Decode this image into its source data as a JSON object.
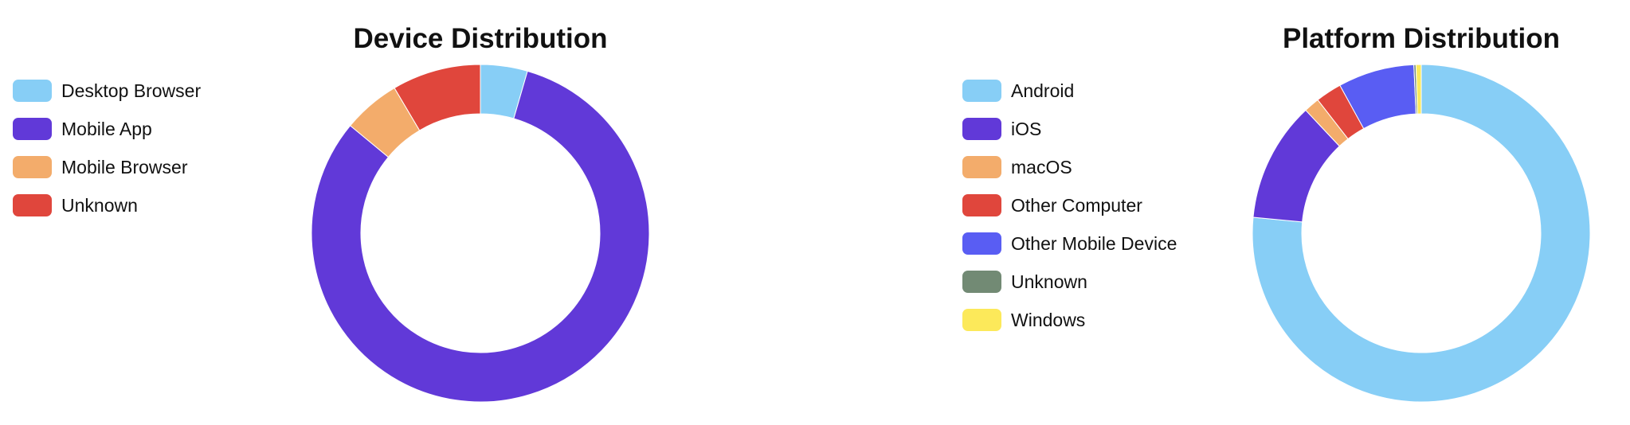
{
  "chart_data": [
    {
      "type": "pie",
      "title": "Device Distribution",
      "legend_position": "left",
      "series": [
        {
          "name": "Desktop Browser",
          "value": 4.5,
          "color": "#87CEF6"
        },
        {
          "name": "Mobile App",
          "value": 81.5,
          "color": "#6139D8"
        },
        {
          "name": "Mobile Browser",
          "value": 5.5,
          "color": "#F3AC6B"
        },
        {
          "name": "Unknown",
          "value": 8.5,
          "color": "#E0463C"
        }
      ]
    },
    {
      "type": "pie",
      "title": "Platform Distribution",
      "legend_position": "left",
      "series": [
        {
          "name": "Android",
          "value": 76.5,
          "color": "#87CEF6"
        },
        {
          "name": "iOS",
          "value": 11.5,
          "color": "#6139D8"
        },
        {
          "name": "macOS",
          "value": 1.5,
          "color": "#F3AC6B"
        },
        {
          "name": "Other Computer",
          "value": 2.5,
          "color": "#E0463C"
        },
        {
          "name": "Other Mobile Device",
          "value": 7.3,
          "color": "#595DF3"
        },
        {
          "name": "Unknown",
          "value": 0.2,
          "color": "#728A74"
        },
        {
          "name": "Windows",
          "value": 0.5,
          "color": "#FCE95A"
        }
      ]
    }
  ]
}
